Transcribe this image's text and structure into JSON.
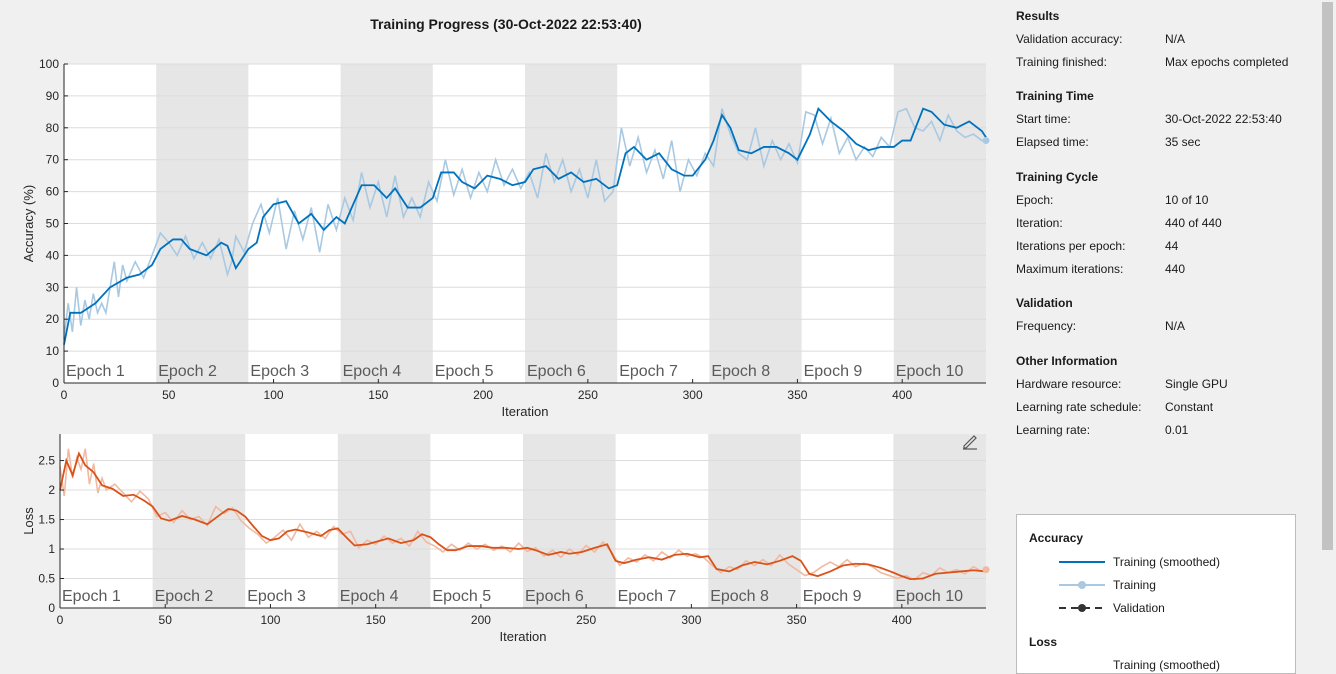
{
  "title": "Training Progress (30-Oct-2022 22:53:40)",
  "colors": {
    "accuracy_smoothed": "#0072BD",
    "accuracy_raw": "#a9c9e2",
    "loss_smoothed": "#D95319",
    "loss_raw": "#f0b9a2",
    "epoch_shade": "#e6e6e6",
    "grid": "#dcdcdc"
  },
  "chart_data": [
    {
      "type": "line",
      "name": "accuracy",
      "ylabel": "Accuracy (%)",
      "xlabel": "Iteration",
      "xlim": [
        0,
        440
      ],
      "ylim": [
        0,
        100
      ],
      "xticks": [
        0,
        50,
        100,
        150,
        200,
        250,
        300,
        350,
        400
      ],
      "yticks": [
        0,
        10,
        20,
        30,
        40,
        50,
        60,
        70,
        80,
        90,
        100
      ],
      "epoch_labels": [
        "Epoch 1",
        "Epoch 2",
        "Epoch 3",
        "Epoch 4",
        "Epoch 5",
        "Epoch 6",
        "Epoch 7",
        "Epoch 8",
        "Epoch 9",
        "Epoch 10"
      ],
      "iterations_per_epoch": 44,
      "grid": true,
      "series": [
        {
          "name": "Training (smoothed)",
          "x": [
            0,
            3,
            8,
            15,
            22,
            30,
            36,
            42,
            46,
            52,
            56,
            60,
            68,
            75,
            78,
            82,
            88,
            92,
            95,
            100,
            106,
            112,
            118,
            124,
            130,
            134,
            138,
            142,
            148,
            154,
            158,
            164,
            170,
            176,
            180,
            186,
            190,
            196,
            202,
            208,
            214,
            220,
            224,
            230,
            236,
            242,
            248,
            254,
            260,
            264,
            268,
            272,
            278,
            284,
            290,
            296,
            300,
            306,
            310,
            314,
            318,
            322,
            328,
            334,
            340,
            346,
            350,
            356,
            360,
            366,
            372,
            378,
            384,
            390,
            396,
            400,
            404,
            410,
            414,
            420,
            426,
            432,
            438,
            440
          ],
          "y": [
            12,
            22,
            22,
            25,
            30,
            33,
            34,
            37,
            42,
            45,
            45,
            42,
            40,
            44,
            43,
            36,
            42,
            44,
            52,
            56,
            57,
            50,
            53,
            48,
            52,
            50,
            56,
            62,
            62,
            58,
            61,
            55,
            55,
            58,
            66,
            66,
            63,
            61,
            65,
            64,
            62,
            63,
            67,
            68,
            64,
            66,
            63,
            64,
            61,
            62,
            72,
            74,
            70,
            72,
            67,
            65,
            65,
            70,
            76,
            84,
            80,
            73,
            72,
            74,
            74,
            72,
            70,
            78,
            86,
            82,
            79,
            75,
            73,
            74,
            74,
            76,
            76,
            86,
            85,
            81,
            80,
            82,
            79,
            77
          ]
        },
        {
          "name": "Training",
          "x": [
            0,
            2,
            4,
            6,
            8,
            10,
            12,
            14,
            16,
            18,
            20,
            22,
            24,
            26,
            28,
            30,
            34,
            38,
            42,
            46,
            50,
            54,
            58,
            62,
            66,
            70,
            74,
            78,
            80,
            82,
            86,
            90,
            94,
            98,
            102,
            106,
            110,
            114,
            118,
            122,
            126,
            130,
            134,
            138,
            142,
            146,
            150,
            154,
            158,
            162,
            166,
            170,
            174,
            178,
            182,
            186,
            190,
            194,
            198,
            202,
            206,
            210,
            214,
            218,
            222,
            226,
            230,
            234,
            238,
            242,
            246,
            250,
            254,
            258,
            262,
            266,
            270,
            274,
            278,
            282,
            286,
            290,
            294,
            298,
            302,
            306,
            310,
            314,
            318,
            322,
            326,
            330,
            334,
            338,
            342,
            346,
            350,
            354,
            358,
            362,
            366,
            370,
            374,
            378,
            382,
            386,
            390,
            394,
            398,
            402,
            406,
            410,
            414,
            418,
            422,
            426,
            430,
            434,
            438,
            440
          ],
          "y": [
            14,
            25,
            16,
            30,
            18,
            26,
            20,
            28,
            22,
            25,
            22,
            30,
            38,
            27,
            37,
            32,
            38,
            33,
            40,
            47,
            44,
            40,
            46,
            39,
            44,
            39,
            45,
            34,
            38,
            46,
            41,
            50,
            56,
            47,
            58,
            42,
            54,
            45,
            55,
            41,
            56,
            48,
            58,
            51,
            66,
            55,
            63,
            52,
            65,
            52,
            58,
            52,
            63,
            57,
            70,
            59,
            67,
            58,
            66,
            60,
            70,
            62,
            67,
            61,
            66,
            58,
            72,
            63,
            70,
            60,
            67,
            58,
            70,
            57,
            60,
            80,
            68,
            77,
            66,
            73,
            64,
            76,
            60,
            70,
            65,
            72,
            68,
            86,
            78,
            72,
            70,
            80,
            68,
            76,
            70,
            75,
            69,
            85,
            84,
            75,
            83,
            72,
            77,
            70,
            74,
            71,
            77,
            74,
            85,
            86,
            80,
            79,
            82,
            76,
            84,
            79,
            77,
            78,
            76,
            76
          ]
        }
      ]
    },
    {
      "type": "line",
      "name": "loss",
      "ylabel": "Loss",
      "xlabel": "Iteration",
      "xlim": [
        0,
        440
      ],
      "ylim": [
        0,
        2.95
      ],
      "xticks": [
        0,
        50,
        100,
        150,
        200,
        250,
        300,
        350,
        400
      ],
      "yticks": [
        0,
        0.5,
        1,
        1.5,
        2,
        2.5
      ],
      "ytick_labels": [
        "0",
        "0.5",
        "1",
        "1.5",
        "2",
        "2.5"
      ],
      "epoch_labels": [
        "Epoch 1",
        "Epoch 2",
        "Epoch 3",
        "Epoch 4",
        "Epoch 5",
        "Epoch 6",
        "Epoch 7",
        "Epoch 8",
        "Epoch 9",
        "Epoch 10"
      ],
      "iterations_per_epoch": 44,
      "grid": true,
      "series": [
        {
          "name": "Training (smoothed)",
          "x": [
            0,
            3,
            6,
            9,
            12,
            16,
            20,
            25,
            30,
            35,
            40,
            44,
            48,
            52,
            58,
            64,
            70,
            76,
            80,
            84,
            88,
            92,
            96,
            100,
            104,
            108,
            112,
            118,
            124,
            128,
            132,
            136,
            140,
            146,
            152,
            156,
            162,
            168,
            172,
            176,
            180,
            184,
            188,
            194,
            200,
            206,
            212,
            218,
            222,
            226,
            232,
            238,
            242,
            248,
            254,
            260,
            264,
            268,
            274,
            280,
            286,
            292,
            298,
            304,
            308,
            312,
            318,
            324,
            330,
            336,
            342,
            348,
            352,
            356,
            360,
            366,
            372,
            378,
            384,
            390,
            396,
            400,
            404,
            410,
            416,
            422,
            428,
            434,
            440
          ],
          "y": [
            2.0,
            2.5,
            2.25,
            2.62,
            2.42,
            2.3,
            2.08,
            2.02,
            1.9,
            1.92,
            1.82,
            1.72,
            1.52,
            1.48,
            1.56,
            1.5,
            1.42,
            1.58,
            1.68,
            1.65,
            1.55,
            1.38,
            1.22,
            1.15,
            1.18,
            1.3,
            1.33,
            1.28,
            1.22,
            1.32,
            1.35,
            1.2,
            1.06,
            1.08,
            1.14,
            1.18,
            1.1,
            1.15,
            1.25,
            1.2,
            1.08,
            0.98,
            0.98,
            1.05,
            1.05,
            1.02,
            1.02,
            1.0,
            1.02,
            0.98,
            0.9,
            0.95,
            0.92,
            0.95,
            1.02,
            1.08,
            0.8,
            0.76,
            0.82,
            0.86,
            0.82,
            0.9,
            0.92,
            0.86,
            0.88,
            0.66,
            0.62,
            0.72,
            0.78,
            0.74,
            0.8,
            0.88,
            0.8,
            0.58,
            0.54,
            0.62,
            0.72,
            0.75,
            0.74,
            0.68,
            0.6,
            0.54,
            0.49,
            0.5,
            0.58,
            0.6,
            0.62,
            0.64,
            0.62
          ]
        },
        {
          "name": "Training",
          "x": [
            0,
            2,
            4,
            6,
            8,
            10,
            12,
            14,
            16,
            18,
            20,
            22,
            26,
            30,
            34,
            38,
            42,
            46,
            50,
            54,
            58,
            62,
            66,
            70,
            74,
            78,
            82,
            86,
            90,
            94,
            98,
            102,
            106,
            110,
            114,
            118,
            122,
            126,
            130,
            134,
            138,
            142,
            146,
            150,
            154,
            158,
            162,
            166,
            170,
            174,
            178,
            182,
            186,
            190,
            194,
            198,
            202,
            206,
            210,
            214,
            218,
            222,
            226,
            230,
            234,
            238,
            242,
            246,
            250,
            254,
            258,
            262,
            266,
            270,
            274,
            278,
            282,
            286,
            290,
            294,
            298,
            302,
            306,
            310,
            314,
            318,
            322,
            326,
            330,
            334,
            338,
            342,
            346,
            350,
            354,
            358,
            362,
            366,
            370,
            374,
            378,
            382,
            386,
            390,
            394,
            398,
            402,
            406,
            410,
            414,
            418,
            422,
            426,
            430,
            434,
            438,
            440
          ],
          "y": [
            2.4,
            1.9,
            2.7,
            2.2,
            2.55,
            2.35,
            2.7,
            2.1,
            2.45,
            1.95,
            2.2,
            2.0,
            2.1,
            1.95,
            1.8,
            1.98,
            1.85,
            1.55,
            1.62,
            1.45,
            1.65,
            1.5,
            1.55,
            1.4,
            1.72,
            1.6,
            1.7,
            1.48,
            1.35,
            1.25,
            1.1,
            1.2,
            1.32,
            1.15,
            1.42,
            1.2,
            1.3,
            1.18,
            1.38,
            1.25,
            1.3,
            1.02,
            1.15,
            1.08,
            1.22,
            1.1,
            1.18,
            1.05,
            1.3,
            1.12,
            1.05,
            0.95,
            1.08,
            0.98,
            1.1,
            1.0,
            1.08,
            0.98,
            1.05,
            0.95,
            1.1,
            0.96,
            1.02,
            0.88,
            0.98,
            0.86,
            1.0,
            0.9,
            1.06,
            0.95,
            1.12,
            0.95,
            0.72,
            0.85,
            0.78,
            0.9,
            0.8,
            0.95,
            0.85,
            0.98,
            0.88,
            0.92,
            0.85,
            0.72,
            0.6,
            0.7,
            0.65,
            0.8,
            0.72,
            0.82,
            0.72,
            0.9,
            0.75,
            0.65,
            0.55,
            0.6,
            0.7,
            0.78,
            0.7,
            0.82,
            0.7,
            0.76,
            0.7,
            0.6,
            0.55,
            0.5,
            0.55,
            0.48,
            0.6,
            0.55,
            0.68,
            0.6,
            0.65,
            0.58,
            0.7,
            0.62,
            0.65
          ]
        }
      ]
    }
  ],
  "panel": {
    "results": {
      "title": "Results",
      "rows": [
        {
          "label": "Validation accuracy:",
          "value": "N/A"
        },
        {
          "label": "Training finished:",
          "value": "Max epochs completed"
        }
      ]
    },
    "training_time": {
      "title": "Training Time",
      "rows": [
        {
          "label": "Start time:",
          "value": "30-Oct-2022 22:53:40"
        },
        {
          "label": "Elapsed time:",
          "value": "35 sec"
        }
      ]
    },
    "training_cycle": {
      "title": "Training Cycle",
      "rows": [
        {
          "label": "Epoch:",
          "value": "10 of 10"
        },
        {
          "label": "Iteration:",
          "value": "440 of 440"
        },
        {
          "label": "Iterations per epoch:",
          "value": "44"
        },
        {
          "label": "Maximum iterations:",
          "value": "440"
        }
      ]
    },
    "validation": {
      "title": "Validation",
      "rows": [
        {
          "label": "Frequency:",
          "value": "N/A"
        }
      ]
    },
    "other": {
      "title": "Other Information",
      "rows": [
        {
          "label": "Hardware resource:",
          "value": "Single GPU"
        },
        {
          "label": "Learning rate schedule:",
          "value": "Constant"
        },
        {
          "label": "Learning rate:",
          "value": "0.01"
        }
      ]
    }
  },
  "legend": {
    "accuracy_title": "Accuracy",
    "accuracy_items": [
      "Training (smoothed)",
      "Training",
      "Validation"
    ],
    "loss_title": "Loss",
    "loss_items": [
      "Training (smoothed)"
    ]
  }
}
